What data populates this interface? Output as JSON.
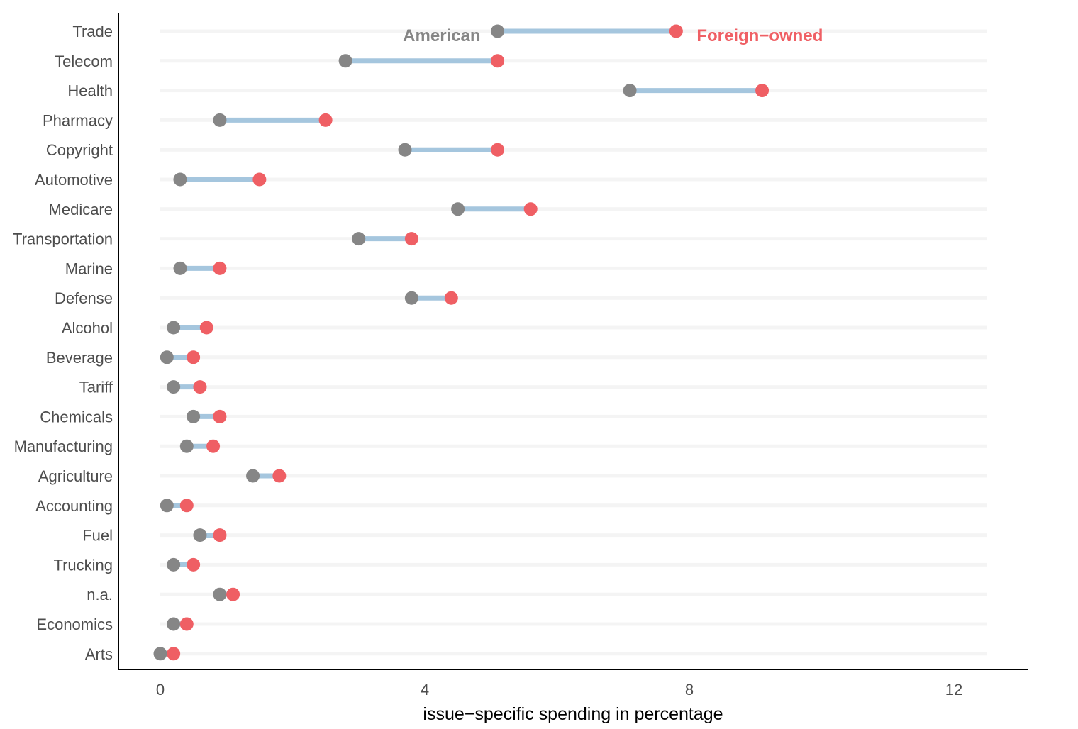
{
  "chart_data": {
    "type": "scatter",
    "xlabel": "issue−specific spending in percentage",
    "xlim": [
      -0.6,
      13.1
    ],
    "xticks": [
      "0",
      "4",
      "8",
      "12"
    ],
    "xtick_values": [
      0,
      4,
      8,
      12
    ],
    "grid": "horizontal",
    "colors": {
      "american": "#868686",
      "foreign": "#EF5F64",
      "segment": "#A5C6DE",
      "gridline": "#F4F4F4"
    },
    "legend": {
      "american_label": "American",
      "foreign_label": "Foreign−owned",
      "placement": "inline-top"
    },
    "categories": [
      "Trade",
      "Telecom",
      "Health",
      "Pharmacy",
      "Copyright",
      "Automotive",
      "Medicare",
      "Transportation",
      "Marine",
      "Defense",
      "Alcohol",
      "Beverage",
      "Tariff",
      "Chemicals",
      "Manufacturing",
      "Agriculture",
      "Accounting",
      "Fuel",
      "Trucking",
      "n.a.",
      "Economics",
      "Arts"
    ],
    "series": [
      {
        "name": "American",
        "values": [
          5.1,
          2.8,
          7.1,
          0.9,
          3.7,
          0.3,
          4.5,
          3.0,
          0.3,
          3.8,
          0.2,
          0.1,
          0.2,
          0.5,
          0.4,
          1.4,
          0.1,
          0.6,
          0.2,
          0.9,
          0.2,
          0.0
        ]
      },
      {
        "name": "Foreign−owned",
        "values": [
          7.8,
          5.1,
          9.1,
          2.5,
          5.1,
          1.5,
          5.6,
          3.8,
          0.9,
          4.4,
          0.7,
          0.5,
          0.6,
          0.9,
          0.8,
          1.8,
          0.4,
          0.9,
          0.5,
          1.1,
          0.4,
          0.2
        ]
      }
    ]
  }
}
